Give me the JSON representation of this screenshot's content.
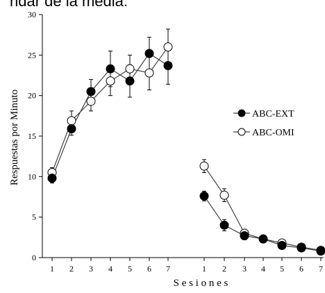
{
  "caption_fragment": "ndar de la media.",
  "chart_data": {
    "type": "line",
    "ylabel": "Respuestas por Minuto",
    "xlabel": "S e s i o n e s",
    "ylim": [
      0,
      30
    ],
    "yticks": [
      0,
      5,
      10,
      15,
      20,
      25,
      30
    ],
    "grid": false,
    "legend_position": "right",
    "panels": [
      {
        "categories": [
          "1",
          "2",
          "3",
          "4",
          "5",
          "6",
          "7"
        ],
        "series": [
          {
            "name": "ABC-EXT",
            "marker": "filled-circle",
            "values": [
              9.8,
              15.9,
              20.5,
              23.3,
              21.8,
              25.2,
              23.7
            ],
            "errors": [
              0.6,
              0.8,
              1.5,
              2.2,
              2.0,
              2.0,
              2.3
            ]
          },
          {
            "name": "ABC-OMI",
            "marker": "open-circle",
            "values": [
              10.5,
              16.9,
              19.3,
              21.8,
              23.3,
              22.8,
              26.0
            ],
            "errors": [
              0.6,
              1.2,
              1.2,
              1.8,
              1.7,
              2.1,
              2.2
            ]
          }
        ]
      },
      {
        "categories": [
          "1",
          "2",
          "3",
          "4",
          "5",
          "6",
          "7"
        ],
        "series": [
          {
            "name": "ABC-EXT",
            "marker": "filled-circle",
            "values": [
              7.6,
              4.0,
              2.7,
              2.3,
              1.5,
              1.2,
              0.8
            ],
            "errors": [
              0.6,
              0.7,
              0.5,
              0.3,
              0.3,
              0.2,
              0.2
            ]
          },
          {
            "name": "ABC-OMI",
            "marker": "open-circle",
            "values": [
              11.3,
              7.7,
              3.0,
              2.3,
              1.8,
              1.3,
              0.9
            ],
            "errors": [
              0.8,
              0.8,
              0.5,
              0.3,
              0.3,
              0.2,
              0.2
            ]
          }
        ]
      }
    ],
    "legend": [
      {
        "label": "ABC-EXT",
        "marker": "filled-circle"
      },
      {
        "label": "ABC-OMI",
        "marker": "open-circle"
      }
    ],
    "colors": {
      "line": "#404040",
      "marker_fill": "#000000",
      "open_fill": "#ffffff"
    }
  }
}
